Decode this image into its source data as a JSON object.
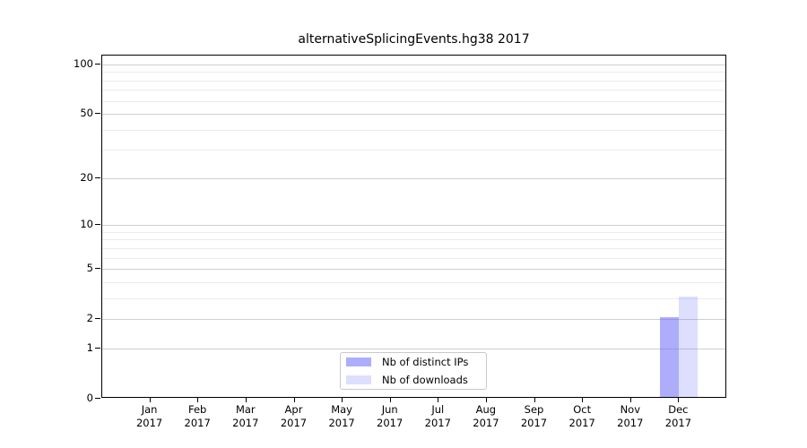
{
  "chart_data": {
    "type": "bar",
    "title": "alternativeSplicingEvents.hg38 2017",
    "categories": [
      {
        "month": "Jan",
        "year": "2017"
      },
      {
        "month": "Feb",
        "year": "2017"
      },
      {
        "month": "Mar",
        "year": "2017"
      },
      {
        "month": "Apr",
        "year": "2017"
      },
      {
        "month": "May",
        "year": "2017"
      },
      {
        "month": "Jun",
        "year": "2017"
      },
      {
        "month": "Jul",
        "year": "2017"
      },
      {
        "month": "Aug",
        "year": "2017"
      },
      {
        "month": "Sep",
        "year": "2017"
      },
      {
        "month": "Oct",
        "year": "2017"
      },
      {
        "month": "Nov",
        "year": "2017"
      },
      {
        "month": "Dec",
        "year": "2017"
      }
    ],
    "series": [
      {
        "name": "Nb of distinct IPs",
        "color": "rgba(105,105,250,0.55)",
        "values": [
          0,
          0,
          0,
          0,
          0,
          0,
          0,
          0,
          0,
          0,
          0,
          2
        ]
      },
      {
        "name": "Nb of downloads",
        "color": "rgba(105,105,250,0.22)",
        "values": [
          0,
          0,
          0,
          0,
          0,
          0,
          0,
          0,
          0,
          0,
          0,
          3
        ]
      }
    ],
    "xlabel": "",
    "ylabel": "",
    "yticks": [
      0,
      1,
      2,
      5,
      10,
      20,
      50,
      100
    ],
    "minor_gridlines": [
      3,
      4,
      6,
      7,
      8,
      9,
      30,
      40,
      60,
      70,
      80,
      90
    ],
    "ylim": [
      0,
      113
    ],
    "yscale": "log1p",
    "grid": true,
    "legend_position": "bottom-center-inside",
    "colors": {
      "major_gridline": "#cfcfcf",
      "minor_gridline": "#ececec",
      "axis": "#000000"
    }
  }
}
